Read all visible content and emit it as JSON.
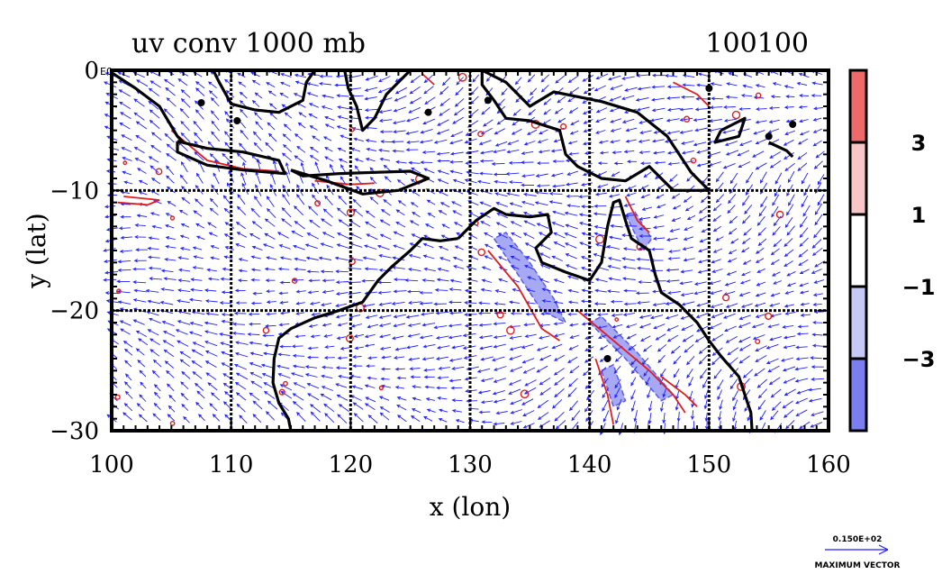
{
  "chart_data": {
    "type": "vector-contour",
    "title": "uv conv 1000 mb",
    "title_right": "100100",
    "xlabel": "x (lon)",
    "ylabel": "y (lat)",
    "xlim": [
      100,
      160
    ],
    "ylim": [
      -30,
      0
    ],
    "x_ticks": [
      100,
      110,
      120,
      130,
      140,
      150,
      160
    ],
    "x_tick_labels": [
      "100",
      "110",
      "120",
      "130",
      "140",
      "150",
      "160"
    ],
    "y_ticks": [
      0,
      -10,
      -20,
      -30
    ],
    "y_tick_labels": [
      "0",
      "−10",
      "−20",
      "−30"
    ],
    "y_top_suffix": "E0",
    "grid": true,
    "colorbar": {
      "placement": "right",
      "levels": [
        {
          "color": "#ee6a6a",
          "value": "",
          "label": ""
        },
        {
          "color": "#f8c6c6",
          "value": "3",
          "label": "3"
        },
        {
          "color": "#ffffff",
          "value": "1",
          "label": "1"
        },
        {
          "color": "#c6c8f6",
          "value": "−1",
          "label": "−1"
        },
        {
          "color": "#7a7ef0",
          "value": "−3",
          "label": "−3"
        }
      ]
    },
    "reference_vector": {
      "value": "0.150E+02",
      "label": "MAXIMUM VECTOR"
    },
    "colors": {
      "vectors": "#1f1fff",
      "positive_contour": "#e11d1d",
      "negative_shade": "#a7a9f4",
      "coast": "#000000"
    }
  }
}
